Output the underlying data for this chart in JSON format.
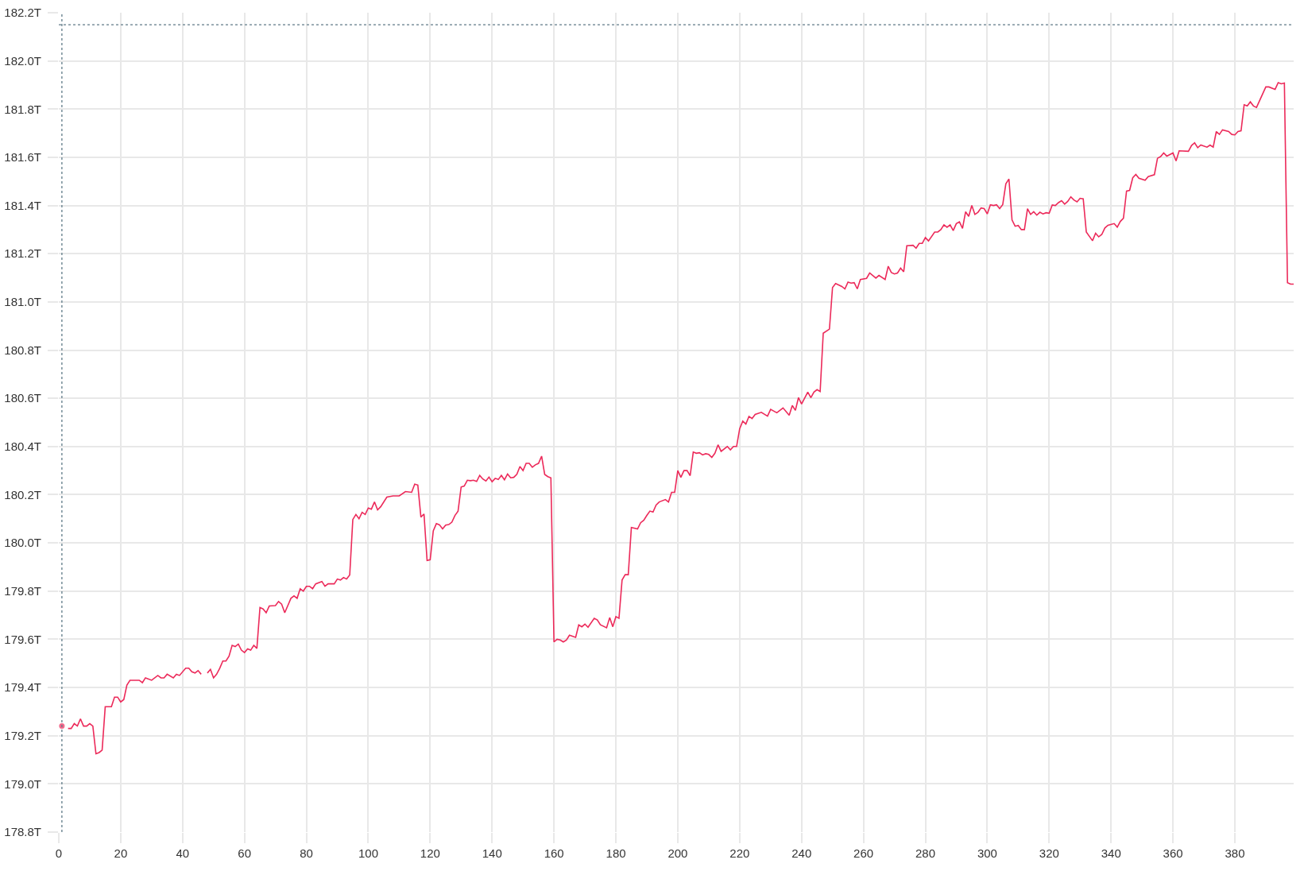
{
  "chart_data": {
    "type": "line",
    "x": [
      1,
      2,
      3,
      4,
      5,
      6,
      7,
      8,
      9,
      10,
      11,
      12,
      13,
      14,
      15,
      17,
      18,
      19,
      20,
      21,
      22,
      23,
      26,
      27,
      28,
      30,
      32,
      33,
      34,
      35,
      37,
      38,
      39,
      41,
      42,
      43,
      44,
      45,
      46,
      47,
      48,
      49,
      50,
      51,
      52,
      53,
      54,
      55,
      56,
      57,
      58,
      59,
      60,
      61,
      62,
      63,
      64,
      65,
      66,
      67,
      68,
      70,
      71,
      72,
      73,
      74,
      75,
      76,
      77,
      78,
      79,
      80,
      81,
      82,
      83,
      85,
      86,
      87,
      89,
      90,
      91,
      92,
      93,
      94,
      95,
      96,
      97,
      98,
      99,
      100,
      101,
      102,
      103,
      104,
      106,
      108,
      110,
      112,
      114,
      115,
      116,
      117,
      118,
      119,
      120,
      121,
      122,
      123,
      124,
      125,
      126,
      127,
      128,
      129,
      130,
      131,
      132,
      133,
      134,
      135,
      136,
      137,
      138,
      139,
      140,
      141,
      142,
      143,
      144,
      145,
      146,
      147,
      148,
      149,
      150,
      151,
      152,
      153,
      154,
      155,
      156,
      157,
      158,
      159,
      160,
      161,
      162,
      163,
      164,
      165,
      167,
      168,
      169,
      170,
      171,
      173,
      174,
      175,
      177,
      178,
      179,
      180,
      181,
      182,
      183,
      184,
      185,
      187,
      188,
      189,
      190,
      191,
      192,
      193,
      194,
      196,
      197,
      198,
      199,
      200,
      201,
      202,
      203,
      204,
      205,
      206,
      207,
      208,
      209,
      210,
      211,
      212,
      213,
      214,
      216,
      217,
      218,
      219,
      220,
      221,
      222,
      223,
      224,
      225,
      227,
      229,
      230,
      232,
      234,
      236,
      237,
      238,
      239,
      240,
      242,
      243,
      244,
      245,
      246,
      247,
      249,
      250,
      251,
      253,
      254,
      255,
      256,
      257,
      258,
      259,
      261,
      262,
      264,
      265,
      267,
      268,
      269,
      270,
      271,
      272,
      273,
      274,
      276,
      277,
      278,
      279,
      280,
      281,
      283,
      284,
      285,
      286,
      287,
      288,
      289,
      290,
      291,
      292,
      293,
      294,
      295,
      296,
      297,
      298,
      299,
      300,
      301,
      302,
      303,
      304,
      305,
      306,
      307,
      308,
      309,
      310,
      311,
      312,
      313,
      314,
      315,
      316,
      317,
      318,
      319,
      320,
      321,
      322,
      323,
      324,
      325,
      326,
      327,
      328,
      329,
      330,
      331,
      332,
      334,
      335,
      336,
      337,
      338,
      339,
      341,
      342,
      343,
      344,
      345,
      346,
      347,
      348,
      349,
      351,
      352,
      354,
      355,
      356,
      357,
      358,
      360,
      361,
      362,
      365,
      366,
      367,
      368,
      369,
      371,
      372,
      373,
      374,
      375,
      376,
      378,
      379,
      380,
      381,
      382,
      383,
      384,
      385,
      386,
      387,
      390,
      391,
      393,
      394,
      395,
      396,
      397,
      398,
      399
    ],
    "series": [
      {
        "color": "#ec2a5a",
        "values": [
          179.24,
          null,
          179.23,
          179.23,
          179.25,
          179.24,
          179.27,
          179.24,
          179.24,
          179.25,
          179.24,
          179.125,
          179.13,
          179.14,
          179.32,
          179.32,
          179.36,
          179.36,
          179.34,
          179.35,
          179.41,
          179.43,
          179.43,
          179.42,
          179.44,
          179.43,
          179.45,
          179.44,
          179.44,
          179.455,
          179.44,
          179.455,
          179.45,
          179.48,
          179.48,
          179.465,
          179.46,
          179.47,
          179.455,
          null,
          179.46,
          179.475,
          179.44,
          179.455,
          179.48,
          179.51,
          179.51,
          179.53,
          179.575,
          179.57,
          179.58,
          179.555,
          179.545,
          179.56,
          179.555,
          179.575,
          179.562,
          179.732,
          179.726,
          179.71,
          179.738,
          179.74,
          179.757,
          179.746,
          179.71,
          179.74,
          179.77,
          179.78,
          179.77,
          179.81,
          179.8,
          179.82,
          179.82,
          179.81,
          179.83,
          179.84,
          179.82,
          179.83,
          179.83,
          179.85,
          179.846,
          179.856,
          179.85,
          179.867,
          180.097,
          180.118,
          180.1,
          180.127,
          180.118,
          180.145,
          180.14,
          180.17,
          180.137,
          180.15,
          180.19,
          180.195,
          180.195,
          180.213,
          180.21,
          180.244,
          180.24,
          180.107,
          180.12,
          179.927,
          179.93,
          180.05,
          180.08,
          180.075,
          180.058,
          180.074,
          180.076,
          180.086,
          180.114,
          180.132,
          180.232,
          180.236,
          180.26,
          180.258,
          180.26,
          180.255,
          180.28,
          180.265,
          180.257,
          180.273,
          180.254,
          180.268,
          180.263,
          180.28,
          180.262,
          180.286,
          180.27,
          180.272,
          180.285,
          180.317,
          180.3,
          180.33,
          180.33,
          180.314,
          180.324,
          180.33,
          180.36,
          180.284,
          180.275,
          180.27,
          179.589,
          179.6,
          179.597,
          179.589,
          179.597,
          179.617,
          179.608,
          179.66,
          179.652,
          179.663,
          179.65,
          179.687,
          179.68,
          179.66,
          179.648,
          179.69,
          179.652,
          179.694,
          179.687,
          179.846,
          179.868,
          179.868,
          180.064,
          180.058,
          180.084,
          180.094,
          180.114,
          180.132,
          180.128,
          180.157,
          180.17,
          180.18,
          180.17,
          180.21,
          180.21,
          180.3,
          180.272,
          180.3,
          180.3,
          180.279,
          180.377,
          180.372,
          180.374,
          180.365,
          180.37,
          180.367,
          180.355,
          180.372,
          180.407,
          180.38,
          180.4,
          180.386,
          180.4,
          180.4,
          180.474,
          180.505,
          180.493,
          180.525,
          180.516,
          180.533,
          180.542,
          180.526,
          180.554,
          180.54,
          180.56,
          180.53,
          180.57,
          180.55,
          180.603,
          180.576,
          180.626,
          180.603,
          180.626,
          180.636,
          180.628,
          180.87,
          180.887,
          181.06,
          181.076,
          181.064,
          181.054,
          181.082,
          181.078,
          181.08,
          181.054,
          181.093,
          181.098,
          181.12,
          181.099,
          181.11,
          181.093,
          181.148,
          181.122,
          181.116,
          181.12,
          181.14,
          181.125,
          181.233,
          181.235,
          181.223,
          181.243,
          181.243,
          181.267,
          181.253,
          181.29,
          181.29,
          181.3,
          181.32,
          181.31,
          181.32,
          181.296,
          181.325,
          181.332,
          181.305,
          181.374,
          181.355,
          181.4,
          181.363,
          181.372,
          181.39,
          181.387,
          181.365,
          181.403,
          181.4,
          181.403,
          181.387,
          181.404,
          181.49,
          181.51,
          181.34,
          181.314,
          181.317,
          181.3,
          181.3,
          181.387,
          181.363,
          181.374,
          181.36,
          181.372,
          181.365,
          181.37,
          181.368,
          181.402,
          181.4,
          181.412,
          181.42,
          181.406,
          181.417,
          181.436,
          181.423,
          181.415,
          181.43,
          181.428,
          181.29,
          181.254,
          181.285,
          181.27,
          181.28,
          181.307,
          181.318,
          181.325,
          181.31,
          181.334,
          181.347,
          181.46,
          181.463,
          181.515,
          181.529,
          181.513,
          181.505,
          181.52,
          181.528,
          181.596,
          181.603,
          181.618,
          181.605,
          181.618,
          181.585,
          181.627,
          181.625,
          181.649,
          181.66,
          181.64,
          181.651,
          181.642,
          181.651,
          181.642,
          181.707,
          181.695,
          181.714,
          181.707,
          181.695,
          181.693,
          181.707,
          181.71,
          181.818,
          181.813,
          181.83,
          181.813,
          181.807,
          181.892,
          181.892,
          181.882,
          181.91,
          181.905,
          181.908,
          181.08,
          181.074,
          181.074
        ]
      }
    ],
    "xlim": [
      0,
      399
    ],
    "ylim": [
      178.8,
      182.2
    ],
    "xticks": [
      0,
      20,
      40,
      60,
      80,
      100,
      120,
      140,
      160,
      180,
      200,
      220,
      240,
      260,
      280,
      300,
      320,
      340,
      360,
      380
    ],
    "yticks": [
      {
        "value": 178.8,
        "label": "178.8T"
      },
      {
        "value": 179.0,
        "label": "179.0T"
      },
      {
        "value": 179.2,
        "label": "179.2T"
      },
      {
        "value": 179.4,
        "label": "179.4T"
      },
      {
        "value": 179.6,
        "label": "179.6T"
      },
      {
        "value": 179.8,
        "label": "179.8T"
      },
      {
        "value": 180.0,
        "label": "180.0T"
      },
      {
        "value": 180.2,
        "label": "180.2T"
      },
      {
        "value": 180.4,
        "label": "180.4T"
      },
      {
        "value": 180.6,
        "label": "180.6T"
      },
      {
        "value": 180.8,
        "label": "180.8T"
      },
      {
        "value": 181.0,
        "label": "181.0T"
      },
      {
        "value": 181.2,
        "label": "181.2T"
      },
      {
        "value": 181.4,
        "label": "181.4T"
      },
      {
        "value": 181.6,
        "label": "181.6T"
      },
      {
        "value": 181.8,
        "label": "181.8T"
      },
      {
        "value": 182.0,
        "label": "182.0T"
      },
      {
        "value": 182.2,
        "label": "182.2T"
      }
    ],
    "ref_lines": [
      {
        "axis": "x",
        "value": 1,
        "color": "#5f7a87",
        "line_style": "dotted"
      },
      {
        "axis": "y",
        "value": 182.15,
        "color": "#5f7a87",
        "line_style": "dotted"
      }
    ],
    "grid": true,
    "line_style": "solid"
  }
}
